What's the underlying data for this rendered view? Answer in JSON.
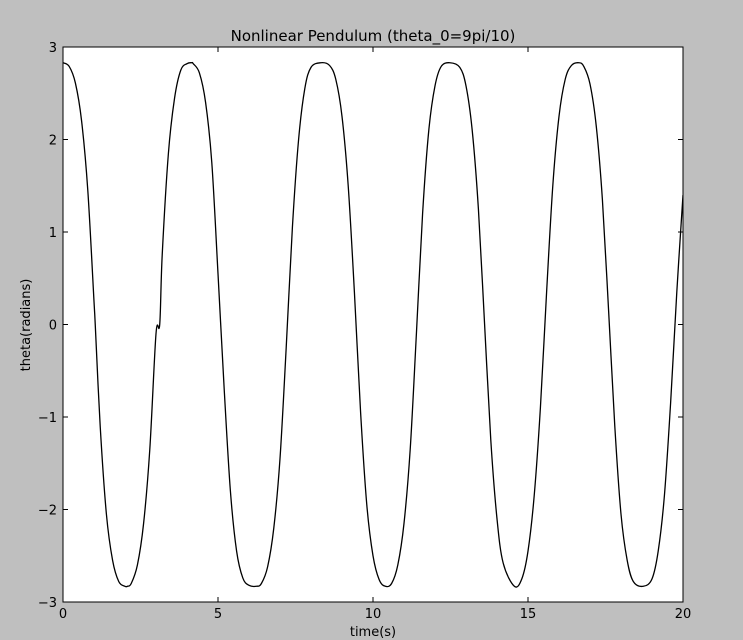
{
  "chart_data": {
    "type": "line",
    "title": "Nonlinear Pendulum (theta_0=9pi/10)",
    "xlabel": "time(s)",
    "ylabel": "theta(radians)",
    "xlim": [
      0,
      20
    ],
    "ylim": [
      -3,
      3
    ],
    "xticks": [
      0,
      5,
      10,
      15,
      20
    ],
    "xtick_labels": [
      "0",
      "5",
      "10",
      "15",
      "20"
    ],
    "yticks": [
      3,
      2,
      1,
      0,
      -1,
      -2,
      -3
    ],
    "ytick_labels": [
      "3",
      "2",
      "1",
      "0",
      "−1",
      "−2",
      "−3"
    ],
    "grid": false,
    "series": [
      {
        "color": "#000000",
        "x": [
          0,
          0.2,
          0.4,
          0.6,
          0.8,
          1.0,
          1.04,
          1.2,
          1.4,
          1.6,
          1.8,
          2.0,
          2.08,
          2.2,
          2.4,
          2.6,
          2.8,
          3.0,
          3.12,
          3.2,
          3.4,
          3.6,
          3.8,
          4.0,
          4.16,
          4.2,
          4.4,
          4.6,
          4.8,
          5.0,
          5.2,
          5.4,
          5.6,
          5.8,
          6.0,
          6.24,
          6.4,
          6.6,
          6.8,
          7.0,
          7.2,
          7.4,
          7.6,
          7.8,
          8.0,
          8.32,
          8.6,
          8.8,
          9.0,
          9.2,
          9.4,
          9.6,
          9.8,
          10.0,
          10.2,
          10.4,
          10.6,
          10.8,
          11.0,
          11.2,
          11.4,
          11.6,
          11.8,
          12.0,
          12.2,
          12.48,
          12.8,
          13.0,
          13.2,
          13.4,
          13.6,
          13.8,
          14.0,
          14.2,
          14.56,
          14.8,
          15.0,
          15.2,
          15.4,
          15.6,
          15.8,
          16.0,
          16.2,
          16.4,
          16.64,
          16.8,
          17.0,
          17.2,
          17.4,
          17.6,
          17.8,
          18.0,
          18.2,
          18.4,
          18.72,
          19.0,
          19.2,
          19.4,
          19.6,
          19.8,
          20.0
        ],
        "y": [
          2.83,
          2.79,
          2.61,
          2.2,
          1.45,
          0.25,
          0.0,
          -1.1,
          -2.05,
          -2.55,
          -2.78,
          -2.83,
          -2.83,
          -2.8,
          -2.6,
          -2.15,
          -1.35,
          -0.1,
          0.0,
          0.75,
          1.85,
          2.45,
          2.75,
          2.82,
          2.83,
          2.82,
          2.72,
          2.4,
          1.75,
          0.55,
          -0.7,
          -1.8,
          -2.45,
          -2.74,
          -2.82,
          -2.83,
          -2.8,
          -2.62,
          -2.2,
          -1.45,
          -0.25,
          1.05,
          2.0,
          2.55,
          2.78,
          2.83,
          2.8,
          2.65,
          2.25,
          1.5,
          0.35,
          -0.95,
          -1.95,
          -2.5,
          -2.76,
          -2.83,
          -2.8,
          -2.6,
          -2.15,
          -1.35,
          -0.1,
          1.2,
          2.1,
          2.58,
          2.79,
          2.83,
          2.78,
          2.58,
          2.1,
          1.25,
          0.0,
          -1.25,
          -2.1,
          -2.58,
          -2.83,
          -2.75,
          -2.45,
          -1.85,
          -0.9,
          0.35,
          1.5,
          2.25,
          2.65,
          2.8,
          2.83,
          2.79,
          2.6,
          2.15,
          1.35,
          0.15,
          -1.1,
          -2.05,
          -2.55,
          -2.78,
          -2.83,
          -2.75,
          -2.45,
          -1.85,
          -0.85,
          0.35,
          1.4
        ]
      }
    ]
  }
}
